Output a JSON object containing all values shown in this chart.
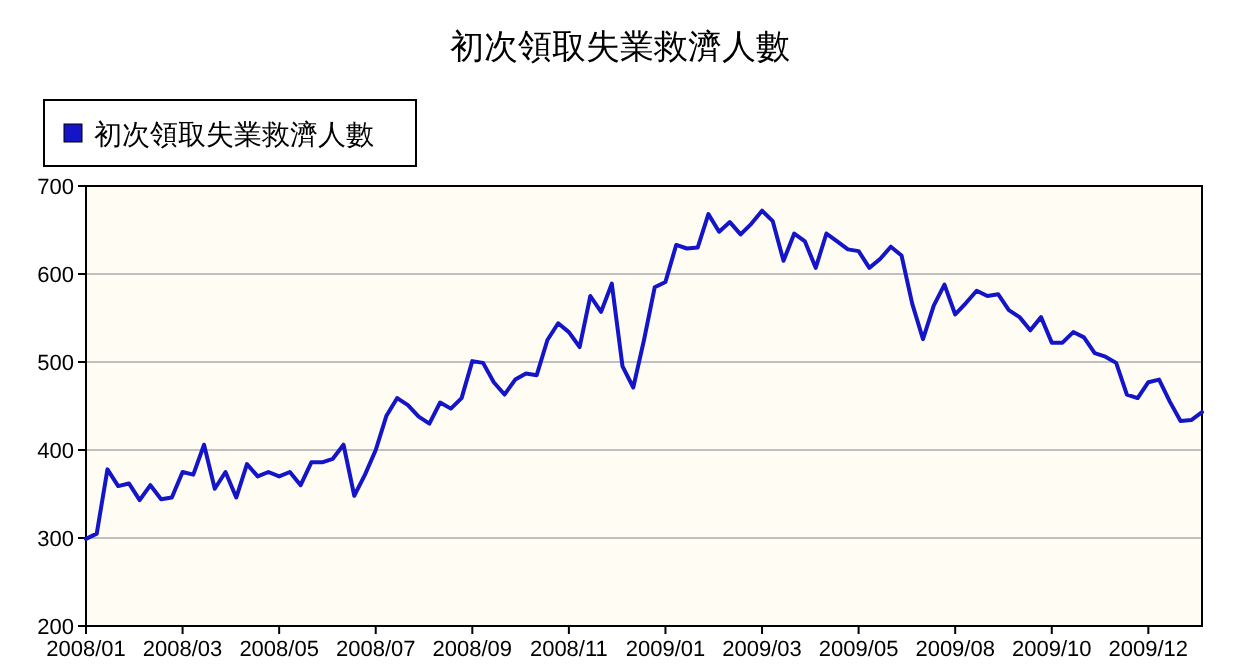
{
  "chart_data": {
    "type": "line",
    "title": "初次領取失業救濟人數",
    "categories": [
      "2008/01",
      null,
      null,
      null,
      null,
      null,
      null,
      null,
      null,
      "2008/03",
      null,
      null,
      null,
      null,
      null,
      null,
      null,
      null,
      "2008/05",
      null,
      null,
      null,
      null,
      null,
      null,
      null,
      null,
      "2008/07",
      null,
      null,
      null,
      null,
      null,
      null,
      null,
      null,
      "2008/09",
      null,
      null,
      null,
      null,
      null,
      null,
      null,
      null,
      "2008/11",
      null,
      null,
      null,
      null,
      null,
      null,
      null,
      null,
      "2009/01",
      null,
      null,
      null,
      null,
      null,
      null,
      null,
      null,
      "2009/03",
      null,
      null,
      null,
      null,
      null,
      null,
      null,
      null,
      "2009/05",
      null,
      null,
      null,
      null,
      null,
      null,
      null,
      null,
      "2009/08",
      null,
      null,
      null,
      null,
      null,
      null,
      null,
      null,
      "2009/10",
      null,
      null,
      null,
      null,
      null,
      null,
      null,
      null,
      "2009/12",
      null,
      null,
      null,
      null,
      null
    ],
    "series": [
      {
        "name": "初次領取失業救濟人數",
        "color": "#1414c8",
        "values": [
          299,
          305,
          378,
          359,
          362,
          343,
          360,
          344,
          346,
          375,
          372,
          406,
          356,
          375,
          346,
          384,
          370,
          375,
          370,
          375,
          360,
          386,
          386,
          390,
          406,
          348,
          372,
          400,
          439,
          459,
          451,
          438,
          430,
          454,
          447,
          459,
          501,
          499,
          477,
          463,
          480,
          487,
          485,
          525,
          544,
          534,
          517,
          575,
          557,
          589,
          495,
          471,
          525,
          585,
          591,
          633,
          629,
          630,
          668,
          648,
          659,
          645,
          657,
          672,
          660,
          615,
          646,
          637,
          607,
          646,
          637,
          628,
          626,
          607,
          617,
          631,
          621,
          566,
          526,
          564,
          588,
          554,
          567,
          581,
          575,
          577,
          559,
          551,
          536,
          551,
          522,
          522,
          534,
          528,
          510,
          506,
          499,
          463,
          459,
          477,
          480,
          455,
          433,
          434,
          443
        ]
      }
    ],
    "ylim": [
      200,
      700
    ],
    "yticks": [
      200,
      300,
      400,
      500,
      600,
      700
    ],
    "grid": "y",
    "legend": "top left"
  }
}
